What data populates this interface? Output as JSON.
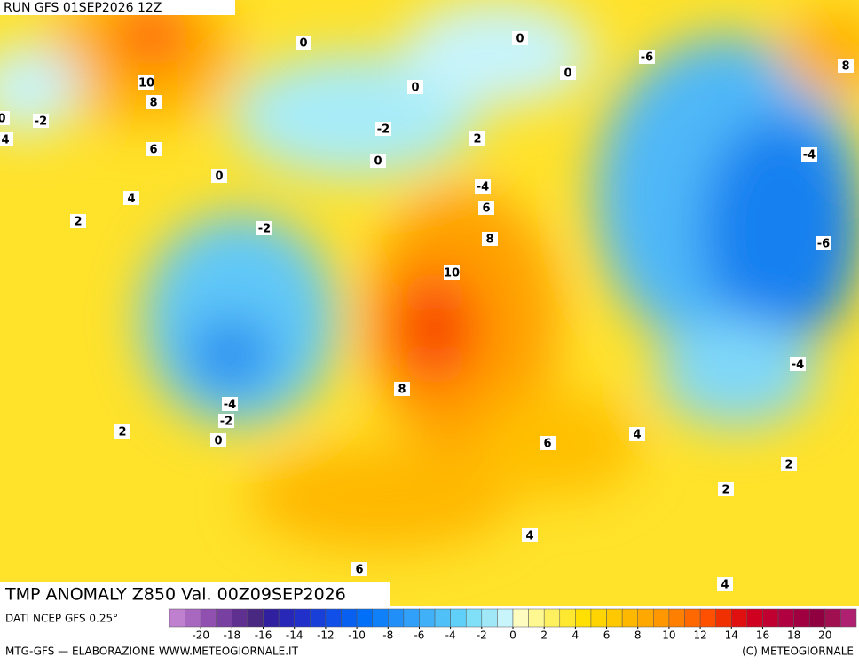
{
  "header": {
    "run": "RUN GFS 01SEP2026 12Z"
  },
  "title": "TMP ANOMALY Z850 Val. 00Z09SEP2026",
  "source": "DATI NCEP GFS 0.25°",
  "footer": "MTG-GFS — ELABORAZIONE WWW.METEOGIORNALE.IT",
  "copyright": "(C) METEOGIORNALE",
  "contour_labels": [
    10,
    8,
    6,
    4,
    2,
    0,
    -2,
    4,
    0,
    0,
    0,
    -2,
    0,
    -2,
    2,
    -4,
    6,
    8,
    10,
    8,
    -4,
    -2,
    0,
    2,
    0,
    0,
    -6,
    8,
    -4,
    -6,
    -4,
    6,
    4,
    2,
    2,
    4,
    6,
    4
  ],
  "colorbar": {
    "lim": [
      -22,
      22
    ],
    "ticks": [
      -20,
      -18,
      -16,
      -14,
      -12,
      -10,
      -8,
      -6,
      -4,
      -2,
      0,
      2,
      4,
      6,
      8,
      10,
      12,
      14,
      16,
      18,
      20
    ],
    "colors": [
      "#c080d0",
      "#a868c0",
      "#9050b0",
      "#7840a0",
      "#603090",
      "#482880",
      "#3020a0",
      "#2828b8",
      "#2030c8",
      "#1840d8",
      "#1050e8",
      "#0860f0",
      "#0070f8",
      "#1080f8",
      "#2090f8",
      "#30a0f8",
      "#40b0f8",
      "#50c0f8",
      "#60d0f8",
      "#80e0f8",
      "#a0e8f8",
      "#c8f4fc",
      "#fffcc0",
      "#fff890",
      "#fff060",
      "#ffe830",
      "#ffe000",
      "#ffd400",
      "#ffc800",
      "#ffb800",
      "#ffa800",
      "#ff9800",
      "#ff8000",
      "#ff6800",
      "#ff5000",
      "#f03000",
      "#e01010",
      "#d00020",
      "#c00030",
      "#b00040",
      "#a00040",
      "#900040",
      "#a01050",
      "#b02070"
    ]
  }
}
